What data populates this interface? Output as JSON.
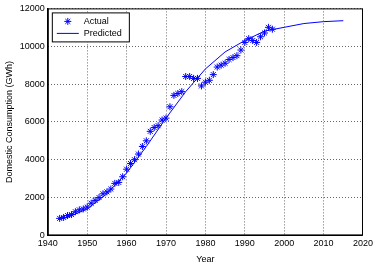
{
  "chart_data": {
    "type": "scatter",
    "x_label": "Year",
    "y_label": "Domestic Consumption (GWh)",
    "series": [
      {
        "name": "Actual",
        "type": "scatter",
        "marker": "asterisk",
        "color": "#0000ff",
        "x": [
          1943,
          1944,
          1945,
          1946,
          1947,
          1948,
          1949,
          1950,
          1951,
          1952,
          1953,
          1954,
          1955,
          1956,
          1957,
          1958,
          1959,
          1960,
          1961,
          1962,
          1963,
          1964,
          1965,
          1966,
          1967,
          1968,
          1969,
          1970,
          1971,
          1972,
          1973,
          1974,
          1975,
          1976,
          1977,
          1978,
          1979,
          1980,
          1981,
          1982,
          1983,
          1984,
          1985,
          1986,
          1987,
          1988,
          1989,
          1990,
          1991,
          1992,
          1993,
          1994,
          1995,
          1996,
          1997
        ],
        "values": [
          900,
          950,
          1050,
          1100,
          1250,
          1350,
          1400,
          1500,
          1700,
          1850,
          2000,
          2200,
          2300,
          2450,
          2750,
          2800,
          3100,
          3500,
          3800,
          4000,
          4300,
          4700,
          5000,
          5500,
          5700,
          5800,
          6100,
          6200,
          6800,
          7400,
          7500,
          7600,
          8400,
          8400,
          8300,
          8300,
          7900,
          8100,
          8200,
          8500,
          8900,
          9000,
          9100,
          9300,
          9400,
          9500,
          9800,
          10200,
          10400,
          10300,
          10200,
          10500,
          10700,
          11000,
          10900
        ]
      },
      {
        "name": "Predicted",
        "type": "line",
        "line_style": "solid",
        "color": "#0000ff",
        "x": [
          1943,
          1945,
          1950,
          1955,
          1960,
          1965,
          1970,
          1975,
          1980,
          1985,
          1990,
          1995,
          2000,
          2005,
          2010,
          2015
        ],
        "values": [
          850,
          950,
          1400,
          2200,
          3300,
          4700,
          6200,
          7600,
          8800,
          9700,
          10300,
          10800,
          11000,
          11200,
          11300,
          11350
        ]
      }
    ],
    "xlim": [
      1940,
      2020
    ],
    "xticks": [
      1940,
      1950,
      1960,
      1970,
      1980,
      1990,
      2000,
      2010,
      2020
    ],
    "ylim": [
      0,
      12000
    ],
    "yticks": [
      0,
      2000,
      4000,
      6000,
      8000,
      10000,
      12000
    ],
    "grid": true,
    "legend": "top-left"
  }
}
